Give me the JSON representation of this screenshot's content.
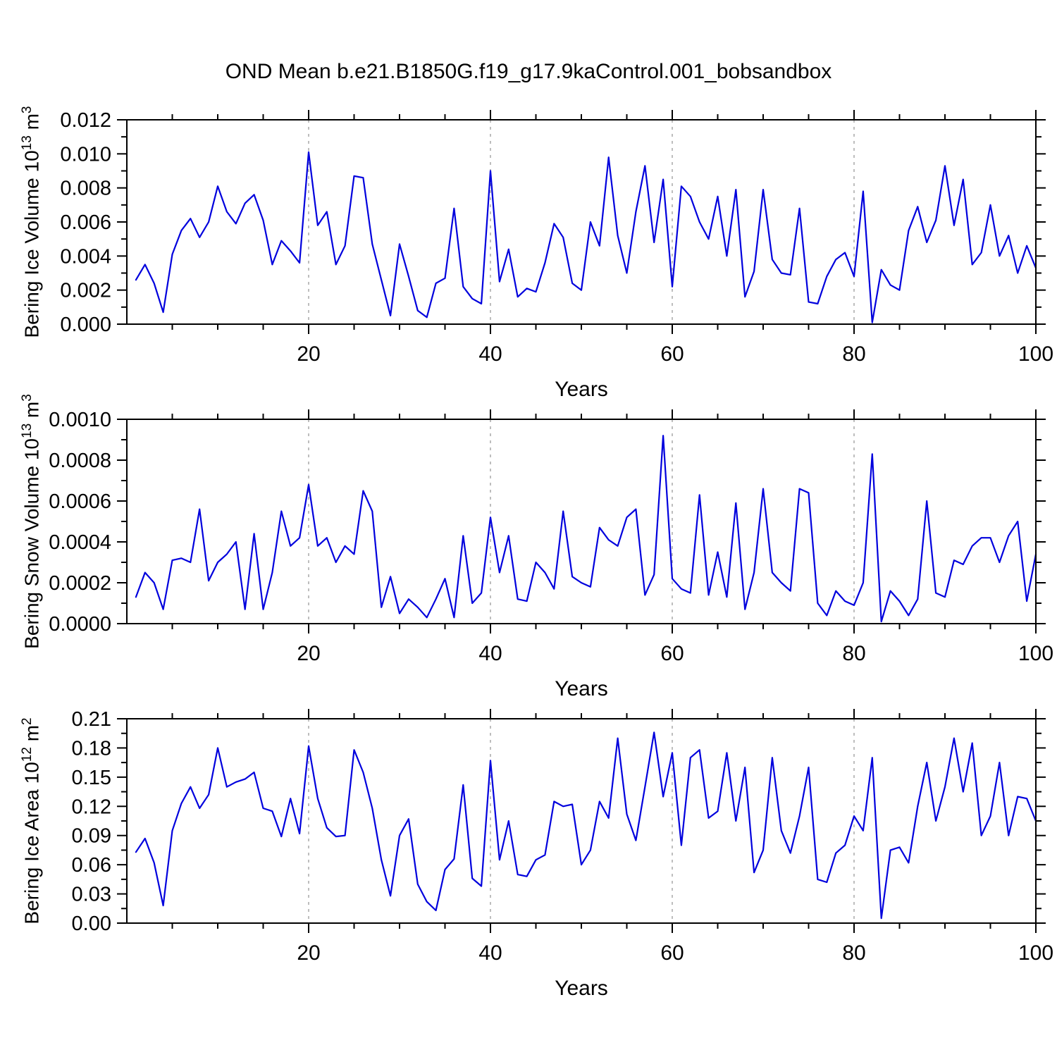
{
  "title": "OND Mean b.e21.B1850G.f19_g17.9kaControl.001_bobsandbox",
  "style": {
    "line_color": "#0000dd",
    "grid_color": "#9a9a9a",
    "axis_color": "#000000"
  },
  "chart_data": [
    {
      "type": "line",
      "name": "Bering Ice Volume",
      "ylabel": "Bering Ice Volume 10^13 m^3",
      "ylabel_parts": {
        "base": "Bering Ice Volume 10",
        "exp": "13",
        "unit": " m",
        "unit_exp": "3"
      },
      "xlabel": "Years",
      "xlim": [
        0,
        100
      ],
      "xticks": [
        20,
        40,
        60,
        80,
        100
      ],
      "x_minor_step": 5,
      "grid_x": [
        20,
        40,
        60,
        80
      ],
      "ylim": [
        0,
        0.012
      ],
      "yticks": [
        0,
        0.002,
        0.004,
        0.006,
        0.008,
        0.01,
        0.012
      ],
      "ytick_labels": [
        "0.000",
        "0.002",
        "0.004",
        "0.006",
        "0.008",
        "0.010",
        "0.012"
      ],
      "y_minor_step": 0.001,
      "x_start": 1,
      "x_step": 1,
      "values": [
        0.0026,
        0.0035,
        0.0024,
        0.0007,
        0.0041,
        0.0055,
        0.0062,
        0.0051,
        0.006,
        0.0081,
        0.0066,
        0.0059,
        0.0071,
        0.0076,
        0.0061,
        0.0035,
        0.0049,
        0.0043,
        0.0036,
        0.0101,
        0.0058,
        0.0066,
        0.0035,
        0.0046,
        0.0087,
        0.0086,
        0.0047,
        0.0026,
        0.0005,
        0.0047,
        0.0028,
        0.0008,
        0.0004,
        0.0024,
        0.0027,
        0.0068,
        0.0022,
        0.0015,
        0.0012,
        0.009,
        0.0025,
        0.0044,
        0.0016,
        0.0021,
        0.0019,
        0.0036,
        0.0059,
        0.0051,
        0.0024,
        0.002,
        0.006,
        0.0046,
        0.0098,
        0.0052,
        0.003,
        0.0066,
        0.0093,
        0.0048,
        0.0085,
        0.0022,
        0.0081,
        0.0075,
        0.006,
        0.005,
        0.0075,
        0.004,
        0.0079,
        0.0016,
        0.0031,
        0.0079,
        0.0038,
        0.003,
        0.0029,
        0.0068,
        0.0013,
        0.0012,
        0.0028,
        0.0038,
        0.0042,
        0.0028,
        0.0078,
        0.0001,
        0.0032,
        0.0023,
        0.002,
        0.0055,
        0.0069,
        0.0048,
        0.0061,
        0.0093,
        0.0058,
        0.0085,
        0.0035,
        0.0042,
        0.007,
        0.004,
        0.0052,
        0.003,
        0.0046,
        0.0033
      ]
    },
    {
      "type": "line",
      "name": "Bering Snow Volume",
      "ylabel": "Bering Snow Volume 10^13 m^3",
      "ylabel_parts": {
        "base": "Bering Snow Volume 10",
        "exp": "13",
        "unit": " m",
        "unit_exp": "3"
      },
      "xlabel": "Years",
      "xlim": [
        0,
        100
      ],
      "xticks": [
        20,
        40,
        60,
        80,
        100
      ],
      "x_minor_step": 5,
      "grid_x": [
        20,
        40,
        60,
        80
      ],
      "ylim": [
        0,
        0.001
      ],
      "yticks": [
        0,
        0.0002,
        0.0004,
        0.0006,
        0.0008,
        0.001
      ],
      "ytick_labels": [
        "0.0000",
        "0.0002",
        "0.0004",
        "0.0006",
        "0.0008",
        "0.0010"
      ],
      "y_minor_step": 0.0001,
      "x_start": 1,
      "x_step": 1,
      "values": [
        0.00013,
        0.00025,
        0.0002,
        7e-05,
        0.00031,
        0.00032,
        0.0003,
        0.00056,
        0.00021,
        0.0003,
        0.00034,
        0.0004,
        7e-05,
        0.00044,
        7e-05,
        0.00025,
        0.00055,
        0.00038,
        0.00042,
        0.00068,
        0.00038,
        0.00042,
        0.0003,
        0.00038,
        0.00034,
        0.00065,
        0.00055,
        8e-05,
        0.00023,
        5e-05,
        0.00012,
        8e-05,
        3e-05,
        0.00012,
        0.00022,
        3e-05,
        0.00043,
        0.0001,
        0.00015,
        0.00052,
        0.00025,
        0.00043,
        0.00012,
        0.00011,
        0.0003,
        0.00025,
        0.00017,
        0.00055,
        0.00023,
        0.0002,
        0.00018,
        0.00047,
        0.00041,
        0.00038,
        0.00052,
        0.00056,
        0.00014,
        0.00024,
        0.00092,
        0.00022,
        0.00017,
        0.00015,
        0.00063,
        0.00014,
        0.00035,
        0.00013,
        0.00059,
        7e-05,
        0.00025,
        0.00066,
        0.00025,
        0.0002,
        0.00016,
        0.00066,
        0.00064,
        0.0001,
        4e-05,
        0.00016,
        0.00011,
        9e-05,
        0.0002,
        0.00083,
        1e-05,
        0.00016,
        0.00011,
        4e-05,
        0.00012,
        0.0006,
        0.00015,
        0.00013,
        0.00031,
        0.00029,
        0.00038,
        0.00042,
        0.00042,
        0.0003,
        0.00043,
        0.0005,
        0.00011,
        0.00034
      ]
    },
    {
      "type": "line",
      "name": "Bering Ice Area",
      "ylabel": "Bering Ice Area 10^12 m^2",
      "ylabel_parts": {
        "base": "Bering Ice Area 10",
        "exp": "12",
        "unit": " m",
        "unit_exp": "2"
      },
      "xlabel": "Years",
      "xlim": [
        0,
        100
      ],
      "xticks": [
        20,
        40,
        60,
        80,
        100
      ],
      "x_minor_step": 5,
      "grid_x": [
        20,
        40,
        60,
        80
      ],
      "ylim": [
        0,
        0.21
      ],
      "yticks": [
        0,
        0.03,
        0.06,
        0.09,
        0.12,
        0.15,
        0.18,
        0.21
      ],
      "ytick_labels": [
        "0.00",
        "0.03",
        "0.06",
        "0.09",
        "0.12",
        "0.15",
        "0.18",
        "0.21"
      ],
      "y_minor_step": 0.015,
      "x_start": 1,
      "x_step": 1,
      "values": [
        0.073,
        0.087,
        0.062,
        0.018,
        0.095,
        0.123,
        0.14,
        0.118,
        0.132,
        0.18,
        0.14,
        0.145,
        0.148,
        0.155,
        0.118,
        0.115,
        0.089,
        0.128,
        0.092,
        0.182,
        0.128,
        0.098,
        0.089,
        0.09,
        0.178,
        0.155,
        0.118,
        0.065,
        0.028,
        0.09,
        0.107,
        0.04,
        0.022,
        0.013,
        0.055,
        0.066,
        0.142,
        0.046,
        0.038,
        0.167,
        0.065,
        0.105,
        0.05,
        0.048,
        0.065,
        0.07,
        0.125,
        0.12,
        0.122,
        0.06,
        0.075,
        0.125,
        0.108,
        0.19,
        0.112,
        0.085,
        0.14,
        0.196,
        0.13,
        0.175,
        0.08,
        0.17,
        0.178,
        0.108,
        0.115,
        0.175,
        0.105,
        0.16,
        0.052,
        0.075,
        0.17,
        0.095,
        0.072,
        0.11,
        0.16,
        0.045,
        0.042,
        0.072,
        0.08,
        0.11,
        0.095,
        0.17,
        0.005,
        0.075,
        0.078,
        0.062,
        0.12,
        0.165,
        0.105,
        0.14,
        0.19,
        0.135,
        0.185,
        0.09,
        0.11,
        0.165,
        0.09,
        0.13,
        0.128,
        0.105
      ]
    }
  ]
}
